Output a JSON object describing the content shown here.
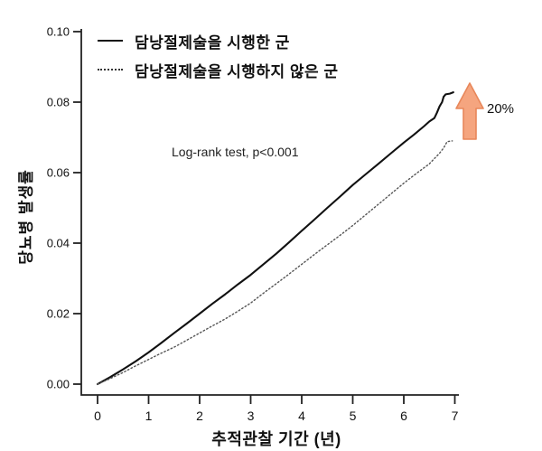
{
  "chart_data": {
    "type": "line",
    "title": "",
    "xlabel": "추적관찰 기간 (년)",
    "ylabel": "당뇨병 발생률",
    "xlim": [
      0,
      7
    ],
    "ylim": [
      0,
      0.1
    ],
    "xticks": [
      "0",
      "1",
      "2",
      "3",
      "4",
      "5",
      "6",
      "7"
    ],
    "xtick_values": [
      0,
      1,
      2,
      3,
      4,
      5,
      6,
      7
    ],
    "yticks": [
      "0.00",
      "0.02",
      "0.04",
      "0.06",
      "0.08",
      "0.10"
    ],
    "ytick_values": [
      0,
      0.02,
      0.04,
      0.06,
      0.08,
      0.1
    ],
    "grid": false,
    "legend_position": "top-left-inside",
    "annotation": "Log-rank test, p<0.001",
    "arrow": {
      "label": "20%",
      "direction": "up",
      "fill": "#f5a57f",
      "stroke": "#e8875a"
    },
    "series": [
      {
        "name": "담낭절제술을 시행한 군",
        "style": "solid",
        "color": "#111111",
        "x": [
          0,
          0.25,
          0.5,
          0.75,
          1,
          1.25,
          1.5,
          1.75,
          2,
          2.25,
          2.5,
          2.75,
          3,
          3.25,
          3.5,
          3.75,
          4,
          4.25,
          4.5,
          4.75,
          5,
          5.25,
          5.5,
          5.75,
          6,
          6.2,
          6.4,
          6.5,
          6.6,
          6.65,
          6.7,
          6.75,
          6.78,
          6.82,
          6.9,
          6.97
        ],
        "y": [
          0,
          0.002,
          0.0042,
          0.0065,
          0.009,
          0.0117,
          0.0145,
          0.0172,
          0.02,
          0.0228,
          0.0255,
          0.0283,
          0.031,
          0.034,
          0.037,
          0.0402,
          0.0435,
          0.0467,
          0.05,
          0.0532,
          0.0565,
          0.0595,
          0.0625,
          0.0655,
          0.0685,
          0.0708,
          0.0732,
          0.0745,
          0.0755,
          0.077,
          0.0788,
          0.08,
          0.0815,
          0.0822,
          0.0824,
          0.0828
        ]
      },
      {
        "name": "담낭절제술을 시행하지 않은 군",
        "style": "dotted",
        "color": "#555555",
        "x": [
          0,
          0.25,
          0.5,
          0.75,
          1,
          1.25,
          1.5,
          1.75,
          2,
          2.25,
          2.5,
          2.75,
          3,
          3.25,
          3.5,
          3.75,
          4,
          4.25,
          4.5,
          4.75,
          5,
          5.25,
          5.5,
          5.75,
          6,
          6.25,
          6.5,
          6.6,
          6.7,
          6.78,
          6.85,
          6.95
        ],
        "y": [
          0,
          0.0016,
          0.0033,
          0.0052,
          0.007,
          0.0088,
          0.0105,
          0.0125,
          0.0145,
          0.0165,
          0.0185,
          0.0207,
          0.023,
          0.0258,
          0.0285,
          0.0312,
          0.034,
          0.0368,
          0.0395,
          0.0422,
          0.045,
          0.048,
          0.051,
          0.054,
          0.057,
          0.0598,
          0.0625,
          0.064,
          0.0655,
          0.067,
          0.0688,
          0.069
        ]
      }
    ]
  }
}
